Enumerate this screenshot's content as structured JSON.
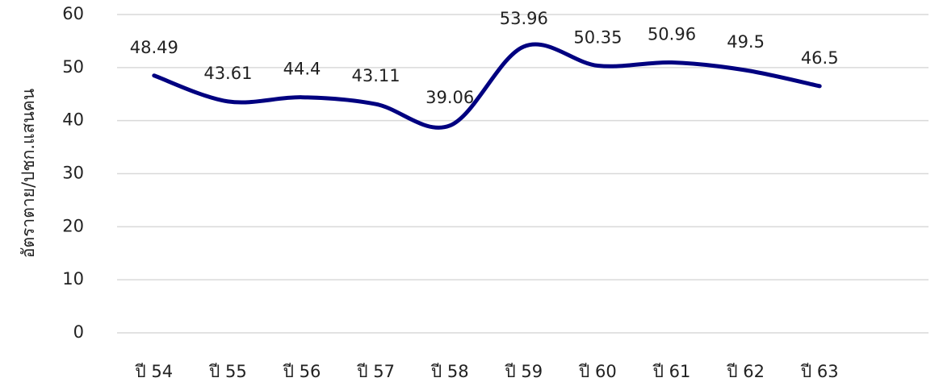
{
  "chart_data": {
    "type": "line",
    "y_label": "อัตราตาย/ปชก.แสนคน",
    "categories": [
      "ปี 54",
      "ปี 55",
      "ปี 56",
      "ปี 57",
      "ปี 58",
      "ปี 59",
      "ปี 60",
      "ปี 61",
      "ปี 62",
      "ปี 63"
    ],
    "series": [
      {
        "name": "อัตราตาย",
        "color": "#000080",
        "values": [
          48.49,
          43.61,
          44.4,
          43.11,
          39.06,
          53.96,
          50.35,
          50.96,
          49.5,
          46.5
        ]
      }
    ],
    "ylim": [
      0,
      60
    ],
    "yticks": [
      0,
      10,
      20,
      30,
      40,
      50,
      60
    ],
    "grid": true,
    "smooth": true
  }
}
